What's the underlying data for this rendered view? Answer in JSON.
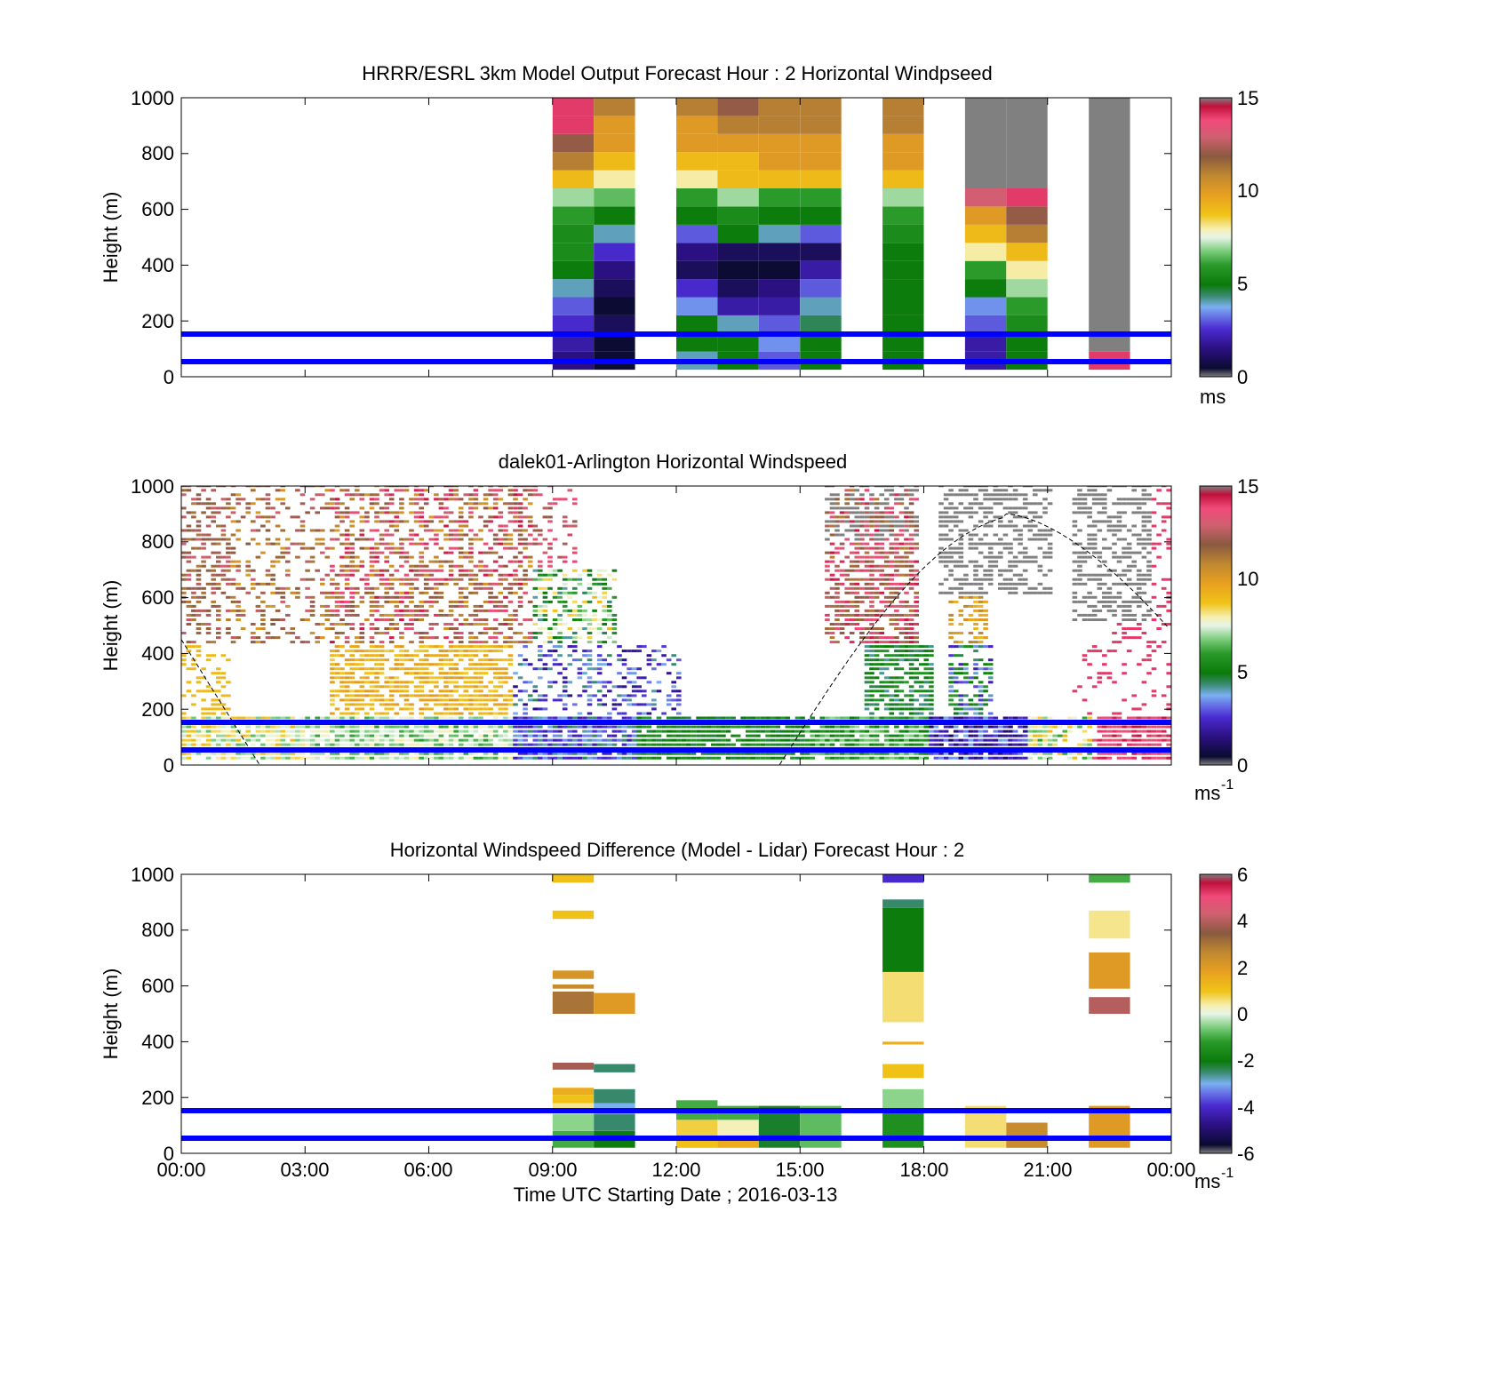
{
  "chart_data": [
    {
      "type": "heatmap",
      "title": "HRRR/ESRL 3km Model Output   Forecast Hour : 2 Horizontal Windpseed",
      "ylabel": "Height (m)",
      "xlabel": "",
      "ylim": [
        0,
        1000
      ],
      "yticks": [
        "0",
        "200",
        "400",
        "600",
        "800",
        "1000"
      ],
      "xlim_hours": [
        0,
        24
      ],
      "colorbar": {
        "min": 0,
        "max": 15,
        "ticks": [
          "0",
          "5",
          "10",
          "15"
        ],
        "unit": "ms"
      },
      "reference_lines_m": [
        50,
        150
      ],
      "columns": [
        {
          "t": 9,
          "v": [
            1.5,
            2,
            2.5,
            3,
            4,
            5,
            5.5,
            5.5,
            6,
            7,
            9,
            11,
            12,
            14,
            14
          ]
        },
        {
          "t": 10,
          "v": [
            0.5,
            0.5,
            1,
            0.5,
            1,
            1.5,
            2.5,
            4,
            5,
            6.5,
            8,
            9,
            10,
            10,
            11
          ]
        },
        {
          "t": 12,
          "v": [
            4,
            5,
            5,
            3.5,
            2.5,
            1,
            1.5,
            3,
            5,
            6,
            8,
            9,
            10,
            10,
            11
          ]
        },
        {
          "t": 13,
          "v": [
            5,
            5,
            4,
            2,
            1,
            0.5,
            1,
            5,
            5.5,
            7,
            9,
            9,
            10,
            11,
            12
          ]
        },
        {
          "t": 14,
          "v": [
            3,
            3.5,
            3,
            2,
            1.5,
            0.5,
            1,
            4,
            5,
            6,
            9,
            10,
            10,
            11,
            11
          ]
        },
        {
          "t": 15,
          "v": [
            5,
            5,
            4.5,
            4,
            3,
            2,
            1,
            3,
            5,
            6,
            9,
            10,
            10,
            11,
            11
          ]
        },
        {
          "t": 17,
          "v": [
            5,
            5,
            5,
            5,
            5,
            5,
            5,
            5.5,
            6,
            7,
            9,
            10,
            10,
            11,
            11
          ]
        },
        {
          "t": 19,
          "v": [
            2,
            2,
            3,
            3.5,
            5,
            6,
            8,
            9,
            10,
            13
          ]
        },
        {
          "t": 20,
          "v": [
            5,
            5,
            5.5,
            6,
            7,
            8,
            9,
            11,
            12,
            14
          ]
        },
        {
          "t": 22,
          "v": [
            14
          ]
        }
      ]
    },
    {
      "type": "heatmap",
      "title": "dalek01-Arlington  Horizontal Windspeed",
      "ylabel": "Height (m)",
      "xlabel": "",
      "ylim": [
        0,
        1000
      ],
      "yticks": [
        "0",
        "200",
        "400",
        "600",
        "800",
        "1000"
      ],
      "xlim_hours": [
        0,
        24
      ],
      "colorbar": {
        "min": 0,
        "max": 15,
        "ticks": [
          "0",
          "5",
          "10",
          "15"
        ],
        "unit": "ms",
        "unit_exp": "-1"
      },
      "reference_lines_m": [
        50,
        150
      ]
    },
    {
      "type": "heatmap",
      "title": "Horizontal Windspeed Difference (Model - Lidar) Forecast Hour : 2",
      "ylabel": "Height (m)",
      "xlabel": "Time UTC  Starting Date ; 2016-03-13",
      "ylim": [
        0,
        1000
      ],
      "yticks": [
        "0",
        "200",
        "400",
        "600",
        "800",
        "1000"
      ],
      "xticks": [
        "00:00",
        "03:00",
        "06:00",
        "09:00",
        "12:00",
        "15:00",
        "18:00",
        "21:00",
        "00:00"
      ],
      "xlim_hours": [
        0,
        24
      ],
      "colorbar": {
        "min": -6,
        "max": 6,
        "ticks": [
          "-6",
          "-4",
          "-2",
          "0",
          "2",
          "4",
          "6"
        ],
        "unit": "ms",
        "unit_exp": "-1"
      },
      "reference_lines_m": [
        50,
        150
      ],
      "segments": [
        {
          "t": 9,
          "h0": 20,
          "h1": 80,
          "v": -1
        },
        {
          "t": 9,
          "h0": 80,
          "h1": 140,
          "v": -0.5
        },
        {
          "t": 9,
          "h0": 140,
          "h1": 180,
          "v": 0.5
        },
        {
          "t": 9,
          "h0": 180,
          "h1": 210,
          "v": 1
        },
        {
          "t": 9,
          "h0": 210,
          "h1": 235,
          "v": 1.5
        },
        {
          "t": 9,
          "h0": 300,
          "h1": 325,
          "v": 3.8
        },
        {
          "t": 9,
          "h0": 500,
          "h1": 580,
          "v": 3
        },
        {
          "t": 9,
          "h0": 590,
          "h1": 605,
          "v": 2.5
        },
        {
          "t": 9,
          "h0": 625,
          "h1": 655,
          "v": 2.2
        },
        {
          "t": 9,
          "h0": 840,
          "h1": 870,
          "v": 1
        },
        {
          "t": 9,
          "h0": 970,
          "h1": 1000,
          "v": 1
        },
        {
          "t": 10,
          "h0": 20,
          "h1": 80,
          "v": -2
        },
        {
          "t": 10,
          "h0": 80,
          "h1": 140,
          "v": -2.5
        },
        {
          "t": 10,
          "h0": 140,
          "h1": 180,
          "v": -3
        },
        {
          "t": 10,
          "h0": 180,
          "h1": 230,
          "v": -2.5
        },
        {
          "t": 10,
          "h0": 290,
          "h1": 320,
          "v": -2.5
        },
        {
          "t": 10,
          "h0": 500,
          "h1": 575,
          "v": 2
        },
        {
          "t": 12,
          "h0": 20,
          "h1": 60,
          "v": 1
        },
        {
          "t": 12,
          "h0": 60,
          "h1": 120,
          "v": 0.8
        },
        {
          "t": 12,
          "h0": 120,
          "h1": 190,
          "v": -1
        },
        {
          "t": 13,
          "h0": 20,
          "h1": 60,
          "v": 1.5
        },
        {
          "t": 13,
          "h0": 60,
          "h1": 120,
          "v": 0.3
        },
        {
          "t": 13,
          "h0": 120,
          "h1": 170,
          "v": -1
        },
        {
          "t": 14,
          "h0": 20,
          "h1": 170,
          "v": -2.2
        },
        {
          "t": 15,
          "h0": 20,
          "h1": 170,
          "v": -0.8
        },
        {
          "t": 17,
          "h0": 20,
          "h1": 150,
          "v": -1.5
        },
        {
          "t": 17,
          "h0": 150,
          "h1": 230,
          "v": -0.5
        },
        {
          "t": 17,
          "h0": 270,
          "h1": 320,
          "v": 1
        },
        {
          "t": 17,
          "h0": 390,
          "h1": 400,
          "v": 1.5
        },
        {
          "t": 17,
          "h0": 470,
          "h1": 650,
          "v": 0.6
        },
        {
          "t": 17,
          "h0": 650,
          "h1": 880,
          "v": -2
        },
        {
          "t": 17,
          "h0": 880,
          "h1": 910,
          "v": -2.5
        },
        {
          "t": 17,
          "h0": 970,
          "h1": 1000,
          "v": -4
        },
        {
          "t": 19,
          "h0": 20,
          "h1": 170,
          "v": 0.6
        },
        {
          "t": 20,
          "h0": 20,
          "h1": 110,
          "v": 2.5
        },
        {
          "t": 22,
          "h0": 20,
          "h1": 170,
          "v": 2
        },
        {
          "t": 22,
          "h0": 500,
          "h1": 560,
          "v": 4
        },
        {
          "t": 22,
          "h0": 590,
          "h1": 720,
          "v": 2
        },
        {
          "t": 22,
          "h0": 770,
          "h1": 870,
          "v": 0.5
        },
        {
          "t": 22,
          "h0": 970,
          "h1": 1000,
          "v": -1
        }
      ]
    }
  ]
}
